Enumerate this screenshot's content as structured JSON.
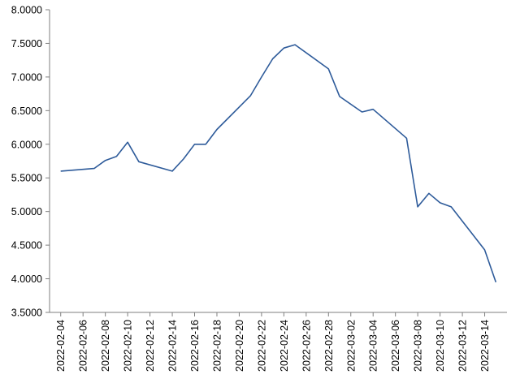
{
  "chart_data": {
    "type": "line",
    "title": "",
    "xlabel": "",
    "ylabel": "",
    "legend": "none",
    "grid": false,
    "x_range": [
      "2022-02-03",
      "2022-03-16"
    ],
    "ylim": [
      3.5,
      8.0
    ],
    "y_ticks": [
      "3.5000",
      "4.0000",
      "4.5000",
      "5.0000",
      "5.5000",
      "6.0000",
      "6.5000",
      "7.0000",
      "7.5000",
      "8.0000"
    ],
    "x_ticks": [
      "2022-02-04",
      "2022-02-06",
      "2022-02-08",
      "2022-02-10",
      "2022-02-12",
      "2022-02-14",
      "2022-02-16",
      "2022-02-18",
      "2022-02-20",
      "2022-02-22",
      "2022-02-24",
      "2022-02-26",
      "2022-02-28",
      "2022-03-02",
      "2022-03-04",
      "2022-03-06",
      "2022-03-08",
      "2022-03-10",
      "2022-03-12",
      "2022-03-14"
    ],
    "series": [
      {
        "color": "#2e5b9a",
        "x": [
          "2022-02-04",
          "2022-02-07",
          "2022-02-08",
          "2022-02-09",
          "2022-02-10",
          "2022-02-11",
          "2022-02-14",
          "2022-02-15",
          "2022-02-16",
          "2022-02-17",
          "2022-02-18",
          "2022-02-21",
          "2022-02-22",
          "2022-02-23",
          "2022-02-24",
          "2022-02-25",
          "2022-02-28",
          "2022-03-01",
          "2022-03-03",
          "2022-03-04",
          "2022-03-07",
          "2022-03-08",
          "2022-03-09",
          "2022-03-10",
          "2022-03-11",
          "2022-03-14",
          "2022-03-15"
        ],
        "values": [
          5.6,
          5.64,
          5.76,
          5.82,
          6.03,
          5.74,
          5.6,
          5.78,
          6.0,
          6.0,
          6.22,
          6.72,
          7.0,
          7.27,
          7.43,
          7.48,
          7.12,
          6.71,
          6.48,
          6.52,
          6.09,
          5.07,
          5.27,
          5.13,
          5.07,
          4.43,
          3.95
        ]
      }
    ]
  }
}
